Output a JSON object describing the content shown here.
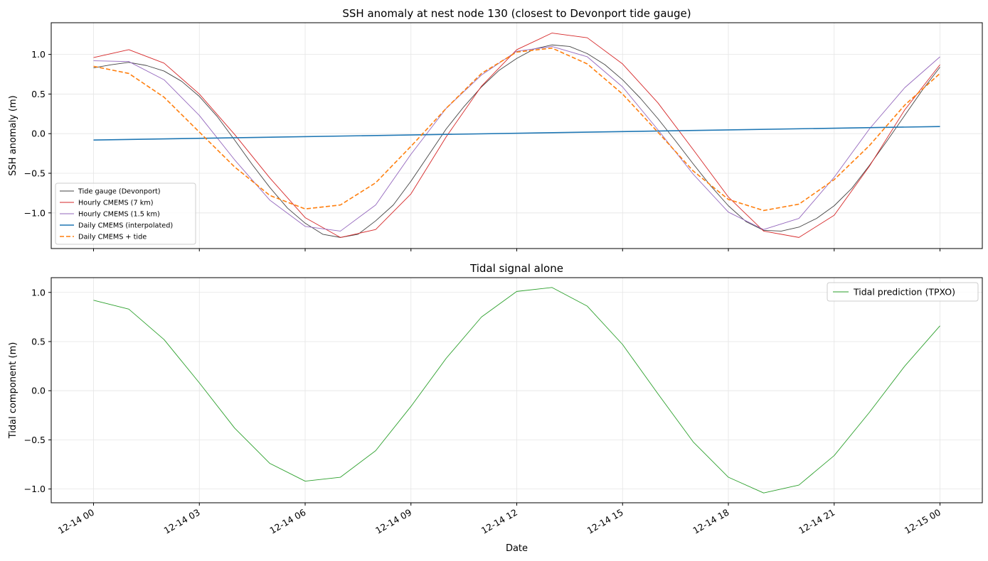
{
  "x_ticks": [
    "12-14 00",
    "12-14 03",
    "12-14 06",
    "12-14 09",
    "12-14 12",
    "12-14 15",
    "12-14 18",
    "12-14 21",
    "12-15 00"
  ],
  "chart_data": [
    {
      "type": "line",
      "title": "SSH anomaly at nest node 130 (closest to Devonport tide gauge)",
      "xlabel": "",
      "ylabel": "SSH anomaly (m)",
      "x_unit": "hour of 12-14",
      "xlim": [
        -1.2,
        25.2
      ],
      "ylim": [
        -1.45,
        1.4
      ],
      "yticks": [
        -1.0,
        -0.5,
        0.0,
        0.5,
        1.0
      ],
      "ytick_labels": [
        "−1.0",
        "−0.5",
        "0.0",
        "0.5",
        "1.0"
      ],
      "grid": true,
      "legend_position": "lower-left",
      "series": [
        {
          "name": "Tide gauge (Devonport)",
          "color": "#444444",
          "dash": "",
          "width": 0.9,
          "x": [
            0,
            0.5,
            1,
            1.5,
            2,
            2.5,
            3,
            3.5,
            4,
            4.5,
            5,
            5.5,
            6,
            6.5,
            7,
            7.5,
            8,
            8.5,
            9,
            9.5,
            10,
            10.5,
            11,
            11.5,
            12,
            12.5,
            13,
            13.5,
            14,
            14.5,
            15,
            15.5,
            16,
            16.5,
            17,
            17.5,
            18,
            18.5,
            19,
            19.5,
            20,
            20.5,
            21,
            21.5,
            22,
            22.5,
            23,
            23.5,
            24
          ],
          "y": [
            0.83,
            0.87,
            0.9,
            0.86,
            0.79,
            0.66,
            0.47,
            0.22,
            -0.08,
            -0.39,
            -0.68,
            -0.94,
            -1.13,
            -1.27,
            -1.31,
            -1.27,
            -1.1,
            -0.9,
            -0.6,
            -0.27,
            0.06,
            0.34,
            0.59,
            0.8,
            0.95,
            1.07,
            1.12,
            1.1,
            1.01,
            0.87,
            0.68,
            0.45,
            0.19,
            -0.09,
            -0.38,
            -0.66,
            -0.91,
            -1.11,
            -1.22,
            -1.23,
            -1.18,
            -1.07,
            -0.91,
            -0.69,
            -0.4,
            -0.09,
            0.23,
            0.55,
            0.84
          ]
        },
        {
          "name": "Hourly CMEMS (7 km)",
          "color": "#d62728",
          "dash": "",
          "width": 0.9,
          "x": [
            0,
            1,
            2,
            3,
            4,
            5,
            6,
            7,
            8,
            9,
            10,
            11,
            12,
            13,
            14,
            15,
            16,
            17,
            18,
            19,
            20,
            21,
            22,
            23,
            24
          ],
          "y": [
            0.96,
            1.06,
            0.89,
            0.5,
            -0.01,
            -0.56,
            -1.06,
            -1.31,
            -1.21,
            -0.76,
            -0.04,
            0.6,
            1.06,
            1.27,
            1.21,
            0.88,
            0.39,
            -0.2,
            -0.8,
            -1.23,
            -1.31,
            -1.03,
            -0.41,
            0.3,
            0.87
          ]
        },
        {
          "name": "Hourly CMEMS (1.5 km)",
          "color": "#9467bd",
          "dash": "",
          "width": 0.9,
          "x": [
            0,
            1,
            2,
            3,
            4,
            5,
            6,
            7,
            8,
            9,
            10,
            11,
            12,
            13,
            14,
            15,
            16,
            17,
            18,
            19,
            20,
            21,
            22,
            23,
            24
          ],
          "y": [
            0.92,
            0.91,
            0.68,
            0.23,
            -0.33,
            -0.84,
            -1.17,
            -1.23,
            -0.9,
            -0.26,
            0.32,
            0.74,
            1.04,
            1.1,
            0.97,
            0.59,
            0.05,
            -0.51,
            -0.99,
            -1.21,
            -1.07,
            -0.55,
            0.06,
            0.58,
            0.97
          ]
        },
        {
          "name": "Daily CMEMS (interpolated)",
          "color": "#1f77b4",
          "dash": "",
          "width": 1.6,
          "x": [
            0,
            24
          ],
          "y": [
            -0.08,
            0.09
          ]
        },
        {
          "name": "Daily CMEMS + tide",
          "color": "#ff7f0e",
          "dash": "6,3",
          "width": 1.6,
          "x": [
            0,
            1,
            2,
            3,
            4,
            5,
            6,
            7,
            8,
            9,
            10,
            11,
            12,
            13,
            14,
            15,
            16,
            17,
            18,
            19,
            20,
            21,
            22,
            23,
            24
          ],
          "y": [
            0.85,
            0.76,
            0.46,
            0.02,
            -0.42,
            -0.78,
            -0.95,
            -0.9,
            -0.62,
            -0.16,
            0.32,
            0.76,
            1.03,
            1.08,
            0.88,
            0.5,
            0.02,
            -0.47,
            -0.83,
            -0.97,
            -0.89,
            -0.58,
            -0.15,
            0.36,
            0.76
          ]
        }
      ]
    },
    {
      "type": "line",
      "title": "Tidal signal alone",
      "xlabel": "Date",
      "ylabel": "Tidal component (m)",
      "x_unit": "hour of 12-14",
      "xlim": [
        -1.2,
        25.2
      ],
      "ylim": [
        -1.14,
        1.15
      ],
      "yticks": [
        -1.0,
        -0.5,
        0.0,
        0.5,
        1.0
      ],
      "ytick_labels": [
        "−1.0",
        "−0.5",
        "0.0",
        "0.5",
        "1.0"
      ],
      "grid": true,
      "legend_position": "upper-right",
      "series": [
        {
          "name": "Tidal prediction (TPXO)",
          "color": "#2ca02c",
          "dash": "",
          "width": 0.9,
          "x": [
            0,
            1,
            2,
            3,
            4,
            5,
            6,
            7,
            8,
            9,
            10,
            11,
            12,
            13,
            14,
            15,
            16,
            17,
            18,
            19,
            20,
            21,
            22,
            23,
            24
          ],
          "y": [
            0.92,
            0.83,
            0.52,
            0.08,
            -0.38,
            -0.74,
            -0.92,
            -0.88,
            -0.61,
            -0.16,
            0.33,
            0.75,
            1.01,
            1.05,
            0.86,
            0.47,
            -0.03,
            -0.52,
            -0.88,
            -1.04,
            -0.96,
            -0.66,
            -0.22,
            0.25,
            0.66
          ]
        }
      ]
    }
  ]
}
